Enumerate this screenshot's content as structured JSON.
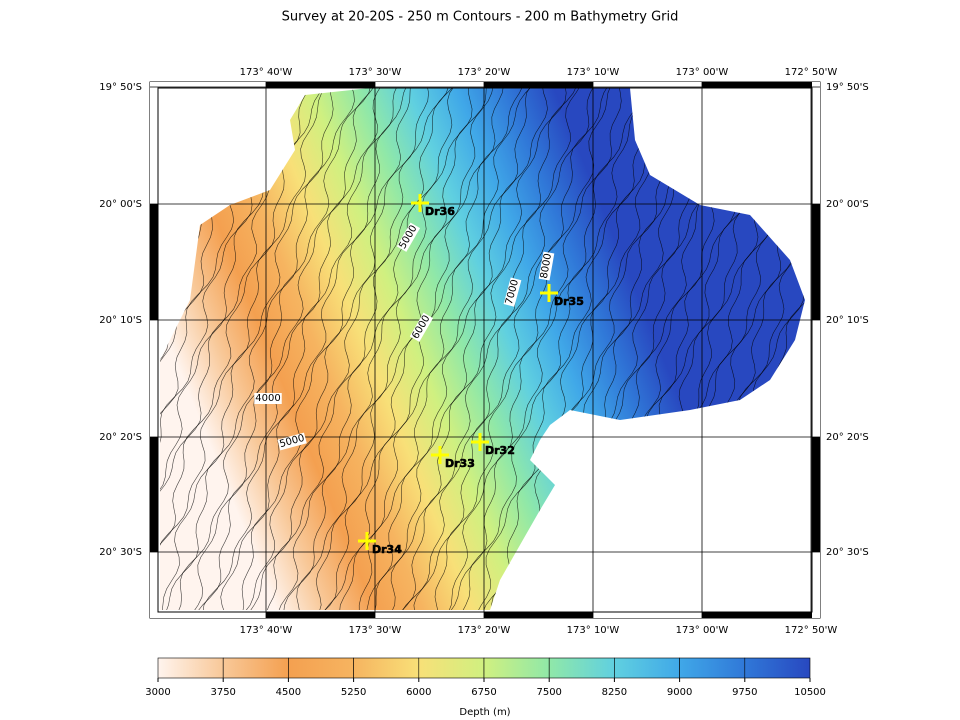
{
  "title": "Survey at 20-20S - 250 m Contours - 200 m Bathymetry Grid",
  "longitude_labels": [
    "173° 40'W",
    "173° 30'W",
    "173° 20'W",
    "173° 10'W",
    "173° 00'W",
    "172° 50'W"
  ],
  "latitude_labels": [
    "19° 50'S",
    "20° 00'S",
    "20° 10'S",
    "20° 20'S",
    "20° 30'S"
  ],
  "contour_labels": [
    "5000",
    "4000",
    "5000",
    "6000",
    "7000",
    "8000"
  ],
  "stations": [
    "Dr36",
    "Dr35",
    "Dr32",
    "Dr33",
    "Dr34"
  ],
  "colorbar": {
    "ticks": [
      3000,
      3750,
      4500,
      5250,
      6000,
      6750,
      7500,
      8250,
      9000,
      9750,
      10500
    ],
    "colors": [
      "#fff4ee",
      "#f8c898",
      "#f4a050",
      "#f6b460",
      "#f8e078",
      "#d0f080",
      "#90e8a8",
      "#60d0e0",
      "#40a8e8",
      "#3078d8",
      "#2848c0"
    ],
    "label": "Depth (m)"
  }
}
